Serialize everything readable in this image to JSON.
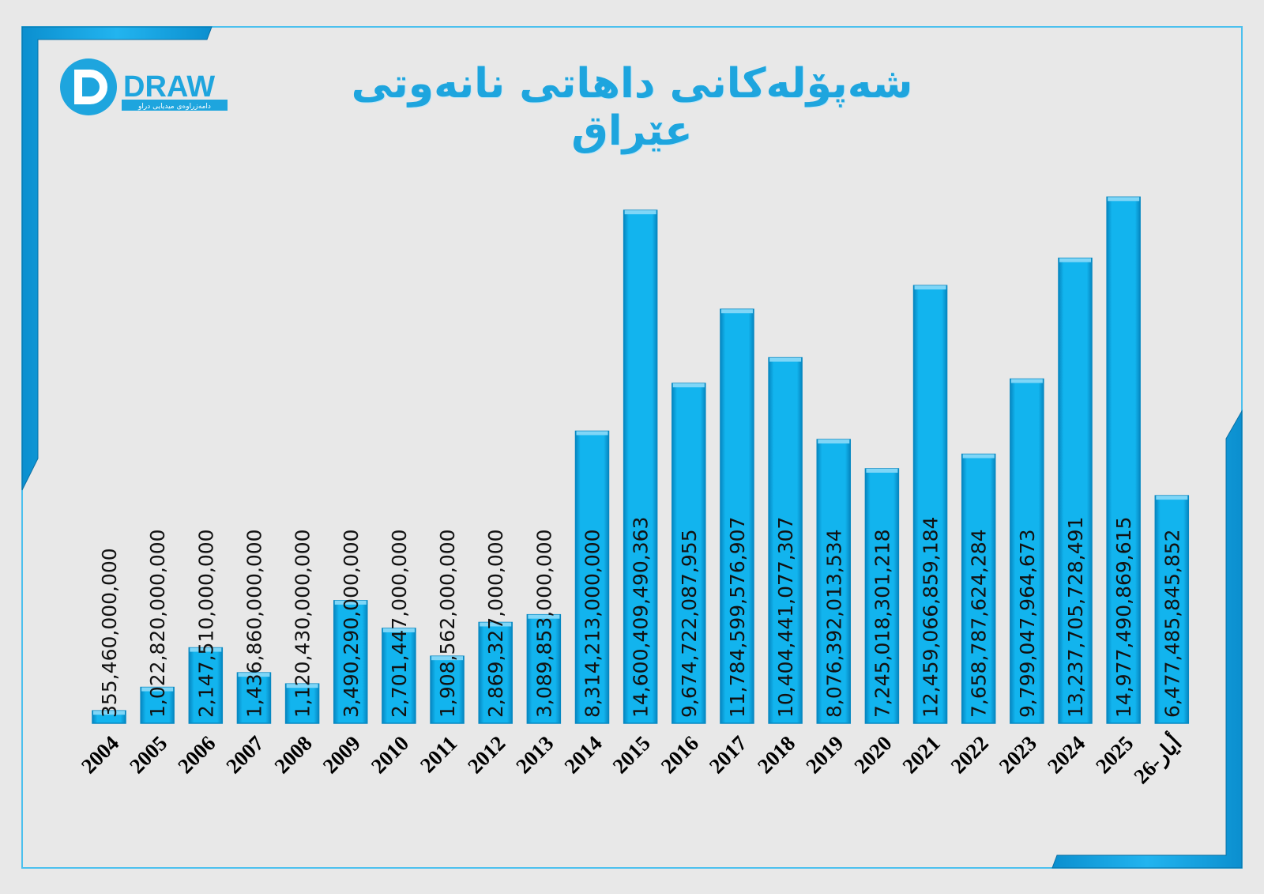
{
  "header": {
    "title": "شەپۆلەکانی داهاتی نانەوتی عێراق",
    "logo": {
      "wordmark": "DRAW",
      "tagline": "دامەزراوەی میدیایی دراو"
    }
  },
  "colors": {
    "background": "#e8e8e8",
    "accent": "#1ea5de",
    "bar": "#0aaeea",
    "bar_dark": "#0688c2"
  },
  "chart_data": {
    "type": "bar",
    "title": "شەپۆلەکانی داهاتی نانەوتی عێراق",
    "categories": [
      "2004",
      "2005",
      "2006",
      "2007",
      "2008",
      "2009",
      "2010",
      "2011",
      "2012",
      "2013",
      "2014",
      "2015",
      "2016",
      "2017",
      "2018",
      "2019",
      "2020",
      "2021",
      "2022",
      "2023",
      "2024",
      "2025",
      "أيار-26"
    ],
    "values": [
      355460000000,
      1022820000000,
      2147510000000,
      1436860000000,
      1120430000000,
      3490290000000,
      2701447000000,
      1908562000000,
      2869327000000,
      3089853000000,
      8314213000000,
      14600409490363,
      9674722087955,
      11784599576907,
      10404441077307,
      8076392013534,
      7245018301218,
      12459066859184,
      7658787624284,
      9799047964673,
      13237705728491,
      14977490869615,
      6477485845852
    ],
    "labels": [
      "355,460,000,000",
      "1,022,820,000,000",
      "2,147,510,000,000",
      "1,436,860,000,000",
      "1,120,430,000,000",
      "3,490,290,000,000",
      "2,701,447,000,000",
      "1,908,562,000,000",
      "2,869,327,000,000",
      "3,089,853,000,000",
      "8,314,213,000,000",
      "14,600,409,490,363",
      "9,674,722,087,955",
      "11,784,599,576,907",
      "10,404,441,077,307",
      "8,076,392,013,534",
      "7,245,018,301,218",
      "12,459,066,859,184",
      "7,658,787,624,284",
      "9,799,047,964,673",
      "13,237,705,728,491",
      "14,977,490,869,615",
      "6,477,485,845,852"
    ],
    "ylim": [
      0,
      15750000000000
    ],
    "grid": false,
    "legend": "none",
    "xlabel": "",
    "ylabel": ""
  }
}
